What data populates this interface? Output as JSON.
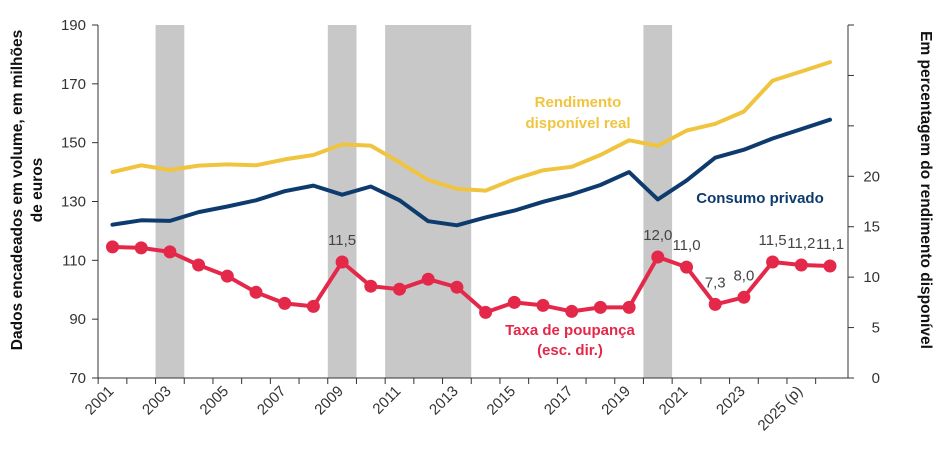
{
  "chart_data": {
    "type": "line",
    "title": "",
    "x": [
      "2001",
      "2002",
      "2003",
      "2004",
      "2005",
      "2006",
      "2007",
      "2008",
      "2009",
      "2010",
      "2011",
      "2012",
      "2013",
      "2014",
      "2015",
      "2016",
      "2017",
      "2018",
      "2019",
      "2020",
      "2021",
      "2022",
      "2023",
      "2024",
      "2025 (p)",
      "2026"
    ],
    "x_tick_labels": [
      "2001",
      "2003",
      "2005",
      "2007",
      "2009",
      "2011",
      "2013",
      "2015",
      "2017",
      "2019",
      "2021",
      "2023",
      "2025 (p)"
    ],
    "left_axis": {
      "label": "Dados encadeados em volume, em milhões de euros",
      "ylim": [
        70,
        190
      ],
      "ticks": [
        "70",
        "90",
        "110",
        "130",
        "150",
        "170",
        "190"
      ]
    },
    "right_axis": {
      "label": "Em percentagem do rendimento disponível",
      "ylim": [
        0,
        35
      ],
      "ticks": [
        "0",
        "5",
        "10",
        "15",
        "20"
      ]
    },
    "shaded_periods": [
      {
        "from": "2003",
        "to": "2003"
      },
      {
        "from": "2009",
        "to": "2009"
      },
      {
        "from": "2011",
        "to": "2013"
      },
      {
        "from": "2020",
        "to": "2020"
      }
    ],
    "series": [
      {
        "name": "Rendimento disponível real",
        "label_lines": [
          "Rendimento",
          "disponível real"
        ],
        "axis": "left",
        "color": "#f0c43f",
        "values": [
          140.0,
          142.3,
          140.7,
          142.2,
          142.6,
          142.3,
          144.3,
          145.8,
          149.4,
          149.0,
          143.3,
          137.3,
          134.3,
          133.7,
          137.6,
          140.6,
          141.8,
          145.8,
          150.8,
          148.9,
          154.1,
          156.4,
          160.6,
          171.1,
          174.2,
          177.4
        ]
      },
      {
        "name": "Consumo privado",
        "label_lines": [
          "Consumo privado"
        ],
        "axis": "left",
        "color": "#0e3b6e",
        "values": [
          122.1,
          123.6,
          123.4,
          126.4,
          128.3,
          130.4,
          133.5,
          135.4,
          132.3,
          135.1,
          130.4,
          123.3,
          121.9,
          124.6,
          126.9,
          129.9,
          132.4,
          135.6,
          140.0,
          130.7,
          137.1,
          144.9,
          147.6,
          151.4,
          154.6,
          157.8
        ]
      },
      {
        "name": "Taxa de poupança (esc. dir.)",
        "label_lines": [
          "Taxa de poupança",
          "(esc. dir.)"
        ],
        "axis": "right",
        "color": "#e4284a",
        "values": [
          13.0,
          12.9,
          12.5,
          11.2,
          10.1,
          8.5,
          7.4,
          7.1,
          11.5,
          9.1,
          8.8,
          9.8,
          9.0,
          6.5,
          7.5,
          7.2,
          6.6,
          7.0,
          7.0,
          12.0,
          11.0,
          7.3,
          8.0,
          11.5,
          11.2,
          11.1
        ],
        "data_labels": [
          {
            "x": "2009",
            "text": "11,5"
          },
          {
            "x": "2020",
            "text": "12,0"
          },
          {
            "x": "2021",
            "text": "11,0"
          },
          {
            "x": "2022",
            "text": "7,3"
          },
          {
            "x": "2023",
            "text": "8,0"
          },
          {
            "x": "2024",
            "text": "11,5"
          },
          {
            "x": "2025 (p)",
            "text": "11,2"
          },
          {
            "x": "2026",
            "text": "11,1"
          }
        ]
      }
    ],
    "grid": false,
    "legend": "inline"
  }
}
